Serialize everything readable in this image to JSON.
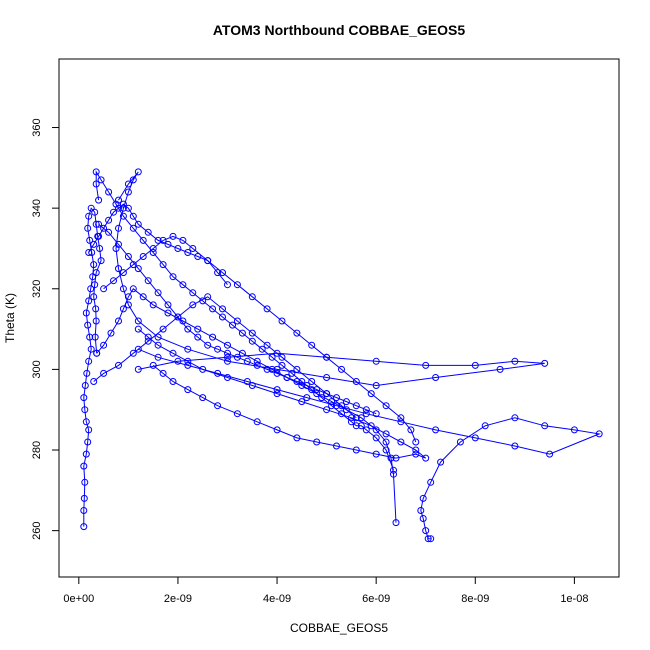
{
  "chart_data": {
    "type": "scatter",
    "title": "ATOM3 Northbound COBBAE_GEOS5",
    "xlabel": "COBBAE_GEOS5",
    "ylabel": "Theta (K)",
    "xlim": [
      -4e-10,
      1.09e-08
    ],
    "ylim": [
      248.5,
      377
    ],
    "x_ticks": [
      0,
      2e-09,
      4e-09,
      6e-09,
      8e-09,
      1e-08
    ],
    "x_tick_labels": [
      "0e+00",
      "2e-09",
      "4e-09",
      "6e-09",
      "8e-09",
      "1e-08"
    ],
    "y_ticks": [
      260,
      280,
      300,
      320,
      340,
      360
    ],
    "y_tick_labels": [
      "260",
      "280",
      "300",
      "320",
      "340",
      "360"
    ],
    "grid": false,
    "legend": "none",
    "color": "#0000ff",
    "series": [
      {
        "x": [
          1e-10,
          1e-10,
          1.1e-10,
          1.2e-10,
          1e-10,
          1.5e-10,
          1.8e-10,
          2e-10,
          1.5e-10,
          1.2e-10,
          1e-10,
          1.3e-10,
          1.6e-10,
          2e-10,
          2.5e-10,
          2.2e-10,
          1.8e-10,
          1.5e-10,
          2e-10,
          2.4e-10,
          2.8e-10,
          3e-10,
          2.6e-10,
          2.2e-10,
          1.8e-10,
          2e-10,
          2.5e-10,
          3.2e-10,
          3.5e-10,
          3.8e-10,
          4.2e-10,
          4.5e-10,
          3.5e-10,
          3.2e-10,
          3e-10,
          3.4e-10,
          3.5e-10,
          3.3e-10,
          3.6e-10
        ],
        "y": [
          261,
          265,
          268,
          272,
          276,
          279,
          282,
          285,
          287,
          290,
          293,
          296,
          299,
          302,
          305,
          308,
          311,
          314,
          317,
          320,
          323,
          326,
          329,
          332,
          335,
          338,
          340,
          339,
          336,
          333,
          330,
          327,
          324,
          321,
          318,
          315,
          312,
          308,
          304
        ]
      },
      {
        "x": [
          3.6e-10,
          5e-10,
          6.5e-10,
          8e-10,
          9e-10,
          1e-09,
          1.1e-09,
          1.3e-09,
          1.5e-09,
          1.8e-09,
          2.1e-09,
          2.4e-09,
          2.7e-09,
          3e-09,
          3.3e-09,
          3.6e-09,
          3.9e-09,
          4.2e-09,
          4.5e-09,
          4.8e-09,
          5.1e-09,
          5.4e-09,
          5.7e-09,
          6e-09,
          6.2e-09,
          6.3e-09,
          6.35e-09,
          6.4e-09
        ],
        "y": [
          304,
          306,
          309,
          312,
          315,
          318,
          320,
          318,
          316,
          314,
          312,
          310,
          308,
          306,
          304,
          302,
          300,
          298,
          296,
          294,
          292,
          290,
          288,
          285,
          282,
          278,
          274,
          262
        ]
      },
      {
        "x": [
          7.1e-09,
          7.05e-09,
          7e-09,
          6.95e-09,
          6.9e-09,
          6.95e-09,
          7.1e-09,
          7.3e-09,
          7.7e-09,
          8.2e-09,
          8.8e-09,
          9.4e-09,
          1e-08,
          1.05e-08,
          9.5e-09,
          8.8e-09,
          8e-09,
          7.2e-09,
          6.5e-09,
          5.8e-09,
          5.2e-09,
          4.6e-09,
          4e-09,
          3.4e-09,
          2.8e-09,
          2.2e-09,
          1.6e-09,
          1.2e-09
        ],
        "y": [
          258,
          258,
          260,
          263,
          265,
          268,
          272,
          277,
          282,
          286,
          288,
          286,
          285,
          284,
          279,
          281,
          283,
          285,
          287,
          289,
          291,
          293,
          295,
          297,
          299,
          301,
          303,
          305
        ]
      },
      {
        "x": [
          1.2e-09,
          2e-09,
          3e-09,
          4e-09,
          5e-09,
          6e-09,
          7e-09,
          8e-09,
          8.8e-09,
          9.4e-09,
          8.5e-09,
          7.2e-09,
          6e-09,
          5e-09,
          4e-09,
          3e-09,
          2.2e-09,
          1.6e-09,
          1.2e-09,
          1e-09,
          9e-10,
          8e-10,
          7.5e-10,
          8e-10,
          9e-10,
          1e-09,
          1.1e-09,
          1.2e-09,
          1e-09,
          8e-10
        ],
        "y": [
          300,
          302,
          303,
          304,
          303,
          302,
          301,
          301,
          302,
          301.5,
          300,
          298,
          296,
          298,
          300,
          302,
          305,
          308,
          312,
          316,
          320,
          325,
          330,
          335,
          340,
          344,
          347,
          349,
          346,
          342
        ]
      },
      {
        "x": [
          4e-10,
          3.5e-10,
          3.5e-10,
          4.5e-10,
          6e-10,
          7.5e-10,
          9e-10,
          1.1e-09,
          1.3e-09,
          1.5e-09,
          1.7e-09,
          1.9e-09,
          2.1e-09,
          2.3e-09,
          2.5e-09,
          2.7e-09,
          2.9e-09,
          3.1e-09,
          3.3e-09,
          3.5e-09,
          3.7e-09,
          3.9e-09,
          4.1e-09,
          4.3e-09,
          4.5e-09,
          4.7e-09,
          4.9e-09,
          5.1e-09,
          5.3e-09,
          5.5e-09,
          5.6e-09,
          5.7e-09,
          5.8e-09,
          6e-09,
          6.2e-09,
          6.35e-09
        ],
        "y": [
          342,
          346,
          349,
          347,
          344,
          341,
          338,
          335,
          332,
          329,
          326,
          323,
          321,
          319,
          317,
          315,
          313,
          311,
          309,
          307,
          305,
          303,
          301,
          299,
          297,
          295,
          293,
          291,
          289,
          287,
          286,
          286,
          285,
          283,
          280,
          275
        ]
      },
      {
        "x": [
          1.5e-09,
          1.7e-09,
          1.9e-09,
          2.2e-09,
          2.5e-09,
          2.8e-09,
          3.2e-09,
          3.6e-09,
          4e-09,
          4.4e-09,
          4.8e-09,
          5.2e-09,
          5.6e-09,
          6e-09,
          6.4e-09,
          6.8e-09,
          7e-09,
          6.8e-09,
          6.5e-09,
          6.2e-09,
          5.9e-09,
          5.5e-09,
          5e-09,
          4.5e-09,
          4e-09,
          3.5e-09,
          3e-09,
          2.5e-09,
          2.2e-09,
          1.9e-09,
          1.6e-09,
          1.4e-09,
          1.2e-09
        ],
        "y": [
          301,
          299,
          297,
          295,
          293,
          291,
          289,
          287,
          285,
          283,
          282,
          281,
          280,
          279,
          278,
          279,
          278,
          280,
          282,
          284,
          286,
          288,
          290,
          292,
          294,
          296,
          298,
          300,
          302,
          304,
          306,
          308,
          310
        ]
      },
      {
        "x": [
          5e-10,
          7e-10,
          9e-10,
          1.1e-09,
          1.3e-09,
          1.5e-09,
          1.7e-09,
          1.9e-09,
          2.1e-09,
          2.3e-09,
          2.6e-09,
          2.9e-09,
          3.2e-09,
          3.5e-09,
          3.8e-09,
          4.1e-09,
          4.4e-09,
          4.7e-09,
          5e-09,
          5.3e-09,
          5.6e-09,
          5.9e-09,
          6.2e-09,
          6.5e-09,
          6.7e-09,
          6.8e-09
        ],
        "y": [
          320,
          322,
          324,
          326,
          328,
          330,
          332,
          333,
          332,
          330,
          327,
          324,
          321,
          318,
          315,
          312,
          309,
          306,
          303,
          300,
          297,
          294,
          291,
          288,
          285,
          282
        ]
      },
      {
        "x": [
          3e-10,
          5e-10,
          8e-10,
          1.1e-09,
          1.4e-09,
          1.7e-09,
          2e-09,
          2.3e-09,
          2.6e-09,
          2.9e-09,
          3.2e-09,
          3.5e-09,
          3.8e-09,
          4.1e-09,
          4.4e-09,
          4.7e-09,
          5e-09,
          5.3e-09,
          5.6e-09
        ],
        "y": [
          297,
          299,
          301,
          304,
          307,
          310,
          313,
          316,
          318,
          315,
          312,
          309,
          306,
          303,
          300,
          297,
          294,
          291,
          288
        ]
      },
      {
        "x": [
          4e-10,
          6e-10,
          8e-10,
          1e-09,
          1.2e-09,
          1.4e-09,
          1.6e-09,
          1.8e-09,
          2e-09,
          2.2e-09,
          2.4e-09,
          2.6e-09,
          2.8e-09,
          3e-09,
          3.2e-09,
          3.4e-09,
          3.6e-09,
          3.8e-09,
          4e-09,
          4.2e-09,
          4.4e-09,
          4.6e-09,
          4.8e-09,
          5e-09,
          5.2e-09,
          5.4e-09,
          5.6e-09,
          5.8e-09,
          6e-09
        ],
        "y": [
          336,
          334,
          331,
          328,
          325,
          322,
          319,
          316,
          313,
          310,
          308,
          306,
          305,
          304,
          303,
          302,
          301,
          300,
          299,
          298,
          297,
          296,
          295,
          294,
          293,
          292,
          291,
          290,
          289
        ]
      },
      {
        "x": [
          2e-10,
          3e-10,
          4e-10,
          5e-10,
          6e-10,
          7e-10,
          8e-10,
          9e-10,
          1e-09,
          1.1e-09,
          1.2e-09,
          1.4e-09,
          1.6e-09,
          1.8e-09,
          2e-09,
          2.2e-09,
          2.4e-09,
          2.6e-09,
          2.8e-09,
          3e-09
        ],
        "y": [
          329,
          331,
          333,
          335,
          337,
          339,
          340,
          341,
          340,
          338,
          336,
          334,
          332,
          331,
          330,
          329,
          328,
          327,
          324,
          321
        ]
      }
    ]
  }
}
